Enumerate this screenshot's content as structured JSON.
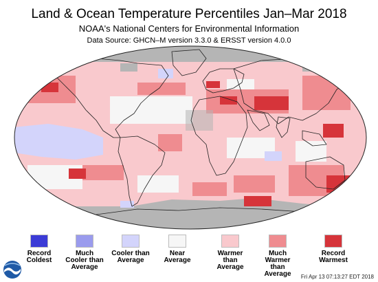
{
  "header": {
    "title": "Land & Ocean Temperature Percentiles Jan–Mar 2018",
    "subtitle": "NOAA's National Centers for Environmental Information",
    "source": "Data Source: GHCN–M version 3.3.0 & ERSST version 4.0.0"
  },
  "colors": {
    "record_coldest": "#3b3bd6",
    "much_cooler": "#9a9bed",
    "cooler": "#d3d4fb",
    "near_average": "#f6f6f6",
    "warmer": "#f9c9cd",
    "much_warmer": "#ef8c90",
    "record_warmest": "#d6343a",
    "no_data": "#b5b5b5"
  },
  "legend": [
    {
      "label": "Record Coldest",
      "color_key": "record_coldest"
    },
    {
      "label": "Much Cooler than Average",
      "color_key": "much_cooler"
    },
    {
      "label": "Cooler than Average",
      "color_key": "cooler"
    },
    {
      "label": "Near Average",
      "color_key": "near_average"
    },
    {
      "label": "Warmer than Average",
      "color_key": "warmer"
    },
    {
      "label": "Much Warmer than Average",
      "color_key": "much_warmer"
    },
    {
      "label": "Record Warmest",
      "color_key": "record_warmest"
    }
  ],
  "logo": {
    "icon": "noaa-logo-icon",
    "text": "NOAA"
  },
  "timestamp": "Fri Apr 13 07:13:27 EDT 2018"
}
